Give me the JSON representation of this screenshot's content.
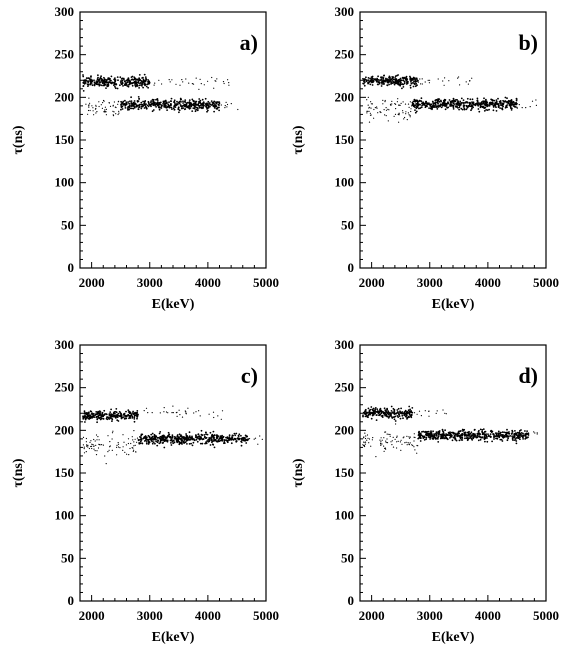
{
  "chart_data": [
    {
      "type": "scatter",
      "panel_label": "a)",
      "xlabel": "E(keV)",
      "ylabel": "τ(ns)",
      "xlim": [
        1800,
        5000
      ],
      "ylim": [
        0,
        300
      ],
      "xticks": [
        2000,
        3000,
        4000,
        5000
      ],
      "yticks": [
        0,
        50,
        100,
        150,
        200,
        250,
        300
      ],
      "grid": false,
      "bands": [
        {
          "x_range": [
            1850,
            3000
          ],
          "tau": 218,
          "spread": 3,
          "density": "dense"
        },
        {
          "x_range": [
            3000,
            4400
          ],
          "tau": 218,
          "spread": 3,
          "density": "sparse"
        },
        {
          "x_range": [
            1900,
            2500
          ],
          "tau": 186,
          "spread": 6,
          "density": "medium"
        },
        {
          "x_range": [
            2500,
            4200
          ],
          "tau": 191,
          "spread": 3,
          "density": "dense"
        },
        {
          "x_range": [
            4200,
            4550
          ],
          "tau": 191,
          "spread": 3,
          "density": "sparse"
        }
      ]
    },
    {
      "type": "scatter",
      "panel_label": "b)",
      "xlabel": "E(keV)",
      "ylabel": "τ(ns)",
      "xlim": [
        1800,
        5000
      ],
      "ylim": [
        0,
        300
      ],
      "xticks": [
        2000,
        3000,
        4000,
        5000
      ],
      "yticks": [
        0,
        50,
        100,
        150,
        200,
        250,
        300
      ],
      "grid": false,
      "bands": [
        {
          "x_range": [
            1850,
            2800
          ],
          "tau": 219,
          "spread": 3,
          "density": "dense"
        },
        {
          "x_range": [
            2800,
            3800
          ],
          "tau": 219,
          "spread": 3,
          "density": "sparse"
        },
        {
          "x_range": [
            1850,
            2700
          ],
          "tau": 185,
          "spread": 7,
          "density": "medium"
        },
        {
          "x_range": [
            2700,
            4500
          ],
          "tau": 192,
          "spread": 3,
          "density": "dense"
        },
        {
          "x_range": [
            4500,
            4900
          ],
          "tau": 192,
          "spread": 3,
          "density": "sparse"
        }
      ]
    },
    {
      "type": "scatter",
      "panel_label": "c)",
      "xlabel": "E(keV)",
      "ylabel": "τ(ns)",
      "xlim": [
        1800,
        5000
      ],
      "ylim": [
        0,
        300
      ],
      "xticks": [
        2000,
        3000,
        4000,
        5000
      ],
      "yticks": [
        0,
        50,
        100,
        150,
        200,
        250,
        300
      ],
      "grid": false,
      "bands": [
        {
          "x_range": [
            1850,
            2800
          ],
          "tau": 217,
          "spread": 3,
          "density": "dense"
        },
        {
          "x_range": [
            2800,
            4300
          ],
          "tau": 220,
          "spread": 4,
          "density": "sparse"
        },
        {
          "x_range": [
            1850,
            2800
          ],
          "tau": 182,
          "spread": 7,
          "density": "medium"
        },
        {
          "x_range": [
            2800,
            4700
          ],
          "tau": 190,
          "spread": 3,
          "density": "dense"
        },
        {
          "x_range": [
            4700,
            5000
          ],
          "tau": 190,
          "spread": 3,
          "density": "sparse"
        }
      ]
    },
    {
      "type": "scatter",
      "panel_label": "d)",
      "xlabel": "E(keV)",
      "ylabel": "τ(ns)",
      "xlim": [
        1800,
        5000
      ],
      "ylim": [
        0,
        300
      ],
      "xticks": [
        2000,
        3000,
        4000,
        5000
      ],
      "yticks": [
        0,
        50,
        100,
        150,
        200,
        250,
        300
      ],
      "grid": false,
      "bands": [
        {
          "x_range": [
            1850,
            2700
          ],
          "tau": 220,
          "spread": 3,
          "density": "dense"
        },
        {
          "x_range": [
            2700,
            3300
          ],
          "tau": 220,
          "spread": 3,
          "density": "sparse"
        },
        {
          "x_range": [
            1850,
            2800
          ],
          "tau": 186,
          "spread": 6,
          "density": "medium"
        },
        {
          "x_range": [
            2800,
            4700
          ],
          "tau": 194,
          "spread": 3,
          "density": "dense"
        },
        {
          "x_range": [
            4700,
            4900
          ],
          "tau": 194,
          "spread": 3,
          "density": "sparse"
        }
      ]
    }
  ]
}
